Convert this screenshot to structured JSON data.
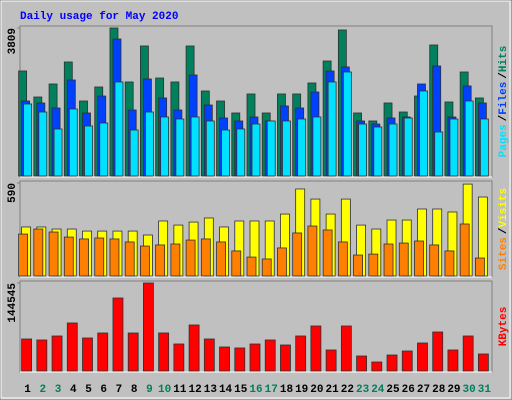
{
  "chart_data": [
    {
      "type": "bar",
      "title": "Daily usage for May 2020",
      "ylim": [
        0,
        3809
      ],
      "yticks": [
        3809
      ],
      "legend_separator": "/",
      "series": [
        {
          "name": "Hits",
          "color": "#00805c",
          "values": [
            2703,
            2033,
            2368,
            2934,
            1930,
            2291,
            3809,
            2420,
            3346,
            2522,
            2420,
            3346,
            2188,
            1930,
            1622,
            2111,
            1622,
            2111,
            2111,
            2394,
            2960,
            3758,
            1622,
            1416,
            1879,
            1647,
            2059,
            3372,
            1905,
            2677,
            2008
          ]
        },
        {
          "name": "Files",
          "color": "#0040ff",
          "values": [
            1930,
            1879,
            1750,
            2471,
            1622,
            2059,
            3526,
            1699,
            2497,
            2008,
            1699,
            2600,
            1827,
            1493,
            1416,
            1519,
            1416,
            1802,
            1750,
            2162,
            2703,
            2806,
            1416,
            1338,
            1493,
            1519,
            2368,
            2831,
            1519,
            2317,
            1879
          ]
        },
        {
          "name": "Pages",
          "color": "#00e0ff",
          "values": [
            1853,
            1647,
            1210,
            1725,
            1287,
            1364,
            2420,
            1184,
            1647,
            1519,
            1467,
            1519,
            1416,
            1184,
            1210,
            1338,
            1416,
            1416,
            1467,
            1519,
            2420,
            2677,
            1338,
            1261,
            1338,
            1493,
            2188,
            1133,
            1467,
            1930,
            1467
          ]
        }
      ]
    },
    {
      "type": "bar",
      "ylim": [
        0,
        590
      ],
      "yticks": [
        590
      ],
      "legend_separator": "/",
      "series": [
        {
          "name": "Visits",
          "color": "#ffff00",
          "values": [
            311,
            311,
            298,
            298,
            285,
            285,
            285,
            285,
            260,
            349,
            323,
            342,
            368,
            311,
            349,
            349,
            349,
            393,
            552,
            488,
            393,
            488,
            323,
            298,
            355,
            355,
            425,
            425,
            406,
            583,
            501
          ]
        },
        {
          "name": "Sites",
          "color": "#ff8000",
          "values": [
            266,
            298,
            279,
            247,
            235,
            241,
            235,
            216,
            190,
            197,
            203,
            228,
            235,
            216,
            159,
            120,
            108,
            178,
            273,
            317,
            292,
            216,
            133,
            139,
            203,
            209,
            222,
            197,
            159,
            330,
            114
          ]
        }
      ]
    },
    {
      "type": "bar",
      "ylim": [
        0,
        144545
      ],
      "yticks": [
        144545
      ],
      "categories": [
        "1",
        "2",
        "3",
        "4",
        "5",
        "6",
        "7",
        "8",
        "9",
        "10",
        "11",
        "12",
        "13",
        "14",
        "15",
        "16",
        "17",
        "18",
        "19",
        "20",
        "21",
        "22",
        "23",
        "24",
        "25",
        "26",
        "27",
        "28",
        "29",
        "30",
        "31"
      ],
      "category_colors": [
        "#000000",
        "#00805c",
        "#00805c",
        "#000000",
        "#000000",
        "#000000",
        "#000000",
        "#000000",
        "#00805c",
        "#00805c",
        "#000000",
        "#000000",
        "#000000",
        "#000000",
        "#000000",
        "#00805c",
        "#00805c",
        "#000000",
        "#000000",
        "#000000",
        "#000000",
        "#000000",
        "#00805c",
        "#00805c",
        "#000000",
        "#000000",
        "#000000",
        "#000000",
        "#000000",
        "#00805c",
        "#00805c"
      ],
      "series": [
        {
          "name": "KBytes",
          "color": "#ff0000",
          "values": [
            52576,
            50933,
            57505,
            78864,
            54219,
            62434,
            119939,
            62434,
            144545,
            62434,
            44361,
            75578,
            52576,
            39432,
            37789,
            44361,
            50933,
            42718,
            57505,
            73935,
            34503,
            73935,
            24645,
            14787,
            26288,
            32860,
            46004,
            64077,
            34503,
            57505,
            27931
          ]
        }
      ]
    }
  ]
}
